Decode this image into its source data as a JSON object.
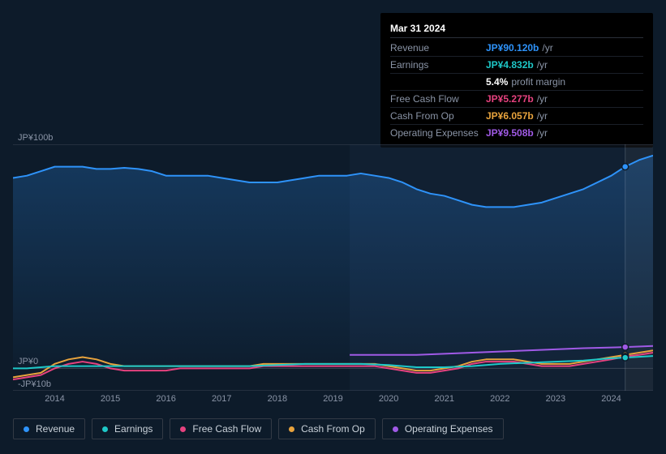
{
  "tooltip": {
    "title": "Mar 31 2024",
    "rows": [
      {
        "label": "Revenue",
        "value": "JP¥90.120b",
        "suffix": "/yr",
        "color": "#2e93fa"
      },
      {
        "label": "Earnings",
        "value": "JP¥4.832b",
        "suffix": "/yr",
        "color": "#1ec8c8"
      },
      {
        "label": "",
        "value": "5.4%",
        "suffix": "profit margin",
        "color": "#ffffff"
      },
      {
        "label": "Free Cash Flow",
        "value": "JP¥5.277b",
        "suffix": "/yr",
        "color": "#e6427f"
      },
      {
        "label": "Cash From Op",
        "value": "JP¥6.057b",
        "suffix": "/yr",
        "color": "#e8a33d"
      },
      {
        "label": "Operating Expenses",
        "value": "JP¥9.508b",
        "suffix": "/yr",
        "color": "#a05ae6"
      }
    ]
  },
  "chart": {
    "type": "area-line",
    "background": "#0d1b2a",
    "grid_color": "#3a4454",
    "text_color": "#8a94a6",
    "ylim": [
      -10,
      100
    ],
    "y_ticks": [
      {
        "v": 100,
        "label": "JP¥100b"
      },
      {
        "v": 0,
        "label": "JP¥0"
      },
      {
        "v": -10,
        "label": "-JP¥10b"
      }
    ],
    "xlim": [
      2013.25,
      2024.75
    ],
    "x_ticks": [
      2014,
      2015,
      2016,
      2017,
      2018,
      2019,
      2020,
      2021,
      2022,
      2023,
      2024
    ],
    "marker_x": 2024.25,
    "highlight_from_x": 2019.3,
    "series": [
      {
        "name": "Revenue",
        "color": "#2e93fa",
        "fill": true,
        "fill_opacity": 0.18,
        "data": [
          [
            2013.25,
            85
          ],
          [
            2013.5,
            86
          ],
          [
            2013.75,
            88
          ],
          [
            2014,
            90
          ],
          [
            2014.25,
            90
          ],
          [
            2014.5,
            90
          ],
          [
            2014.75,
            89
          ],
          [
            2015,
            89
          ],
          [
            2015.25,
            89.5
          ],
          [
            2015.5,
            89
          ],
          [
            2015.75,
            88
          ],
          [
            2016,
            86
          ],
          [
            2016.25,
            86
          ],
          [
            2016.5,
            86
          ],
          [
            2016.75,
            86
          ],
          [
            2017,
            85
          ],
          [
            2017.25,
            84
          ],
          [
            2017.5,
            83
          ],
          [
            2017.75,
            83
          ],
          [
            2018,
            83
          ],
          [
            2018.25,
            84
          ],
          [
            2018.5,
            85
          ],
          [
            2018.75,
            86
          ],
          [
            2019,
            86
          ],
          [
            2019.25,
            86
          ],
          [
            2019.5,
            87
          ],
          [
            2019.75,
            86
          ],
          [
            2020,
            85
          ],
          [
            2020.25,
            83
          ],
          [
            2020.5,
            80
          ],
          [
            2020.75,
            78
          ],
          [
            2021,
            77
          ],
          [
            2021.25,
            75
          ],
          [
            2021.5,
            73
          ],
          [
            2021.75,
            72
          ],
          [
            2022,
            72
          ],
          [
            2022.25,
            72
          ],
          [
            2022.5,
            73
          ],
          [
            2022.75,
            74
          ],
          [
            2023,
            76
          ],
          [
            2023.25,
            78
          ],
          [
            2023.5,
            80
          ],
          [
            2023.75,
            83
          ],
          [
            2024,
            86
          ],
          [
            2024.25,
            90
          ],
          [
            2024.5,
            93
          ],
          [
            2024.75,
            95
          ]
        ]
      },
      {
        "name": "Operating Expenses",
        "color": "#a05ae6",
        "fill": false,
        "data": [
          [
            2019.3,
            6
          ],
          [
            2019.5,
            6
          ],
          [
            2020,
            6
          ],
          [
            2020.5,
            6
          ],
          [
            2021,
            6.5
          ],
          [
            2021.5,
            7
          ],
          [
            2022,
            7.5
          ],
          [
            2022.5,
            8
          ],
          [
            2023,
            8.5
          ],
          [
            2023.5,
            9
          ],
          [
            2024,
            9.3
          ],
          [
            2024.25,
            9.5
          ],
          [
            2024.75,
            10
          ]
        ]
      },
      {
        "name": "Cash From Op",
        "color": "#e8a33d",
        "fill": false,
        "data": [
          [
            2013.25,
            -4
          ],
          [
            2013.5,
            -3
          ],
          [
            2013.75,
            -2
          ],
          [
            2014,
            2
          ],
          [
            2014.25,
            4
          ],
          [
            2014.5,
            5
          ],
          [
            2014.75,
            4
          ],
          [
            2015,
            2
          ],
          [
            2015.25,
            1
          ],
          [
            2015.5,
            1
          ],
          [
            2015.75,
            1
          ],
          [
            2016,
            1
          ],
          [
            2016.25,
            1
          ],
          [
            2016.5,
            1
          ],
          [
            2016.75,
            1
          ],
          [
            2017,
            1
          ],
          [
            2017.25,
            1
          ],
          [
            2017.5,
            1
          ],
          [
            2017.75,
            2
          ],
          [
            2018,
            2
          ],
          [
            2018.25,
            2
          ],
          [
            2018.5,
            2
          ],
          [
            2018.75,
            2
          ],
          [
            2019,
            2
          ],
          [
            2019.25,
            2
          ],
          [
            2019.5,
            2
          ],
          [
            2019.75,
            2
          ],
          [
            2020,
            1
          ],
          [
            2020.25,
            0
          ],
          [
            2020.5,
            -1
          ],
          [
            2020.75,
            -1
          ],
          [
            2021,
            0
          ],
          [
            2021.25,
            1
          ],
          [
            2021.5,
            3
          ],
          [
            2021.75,
            4
          ],
          [
            2022,
            4
          ],
          [
            2022.25,
            4
          ],
          [
            2022.5,
            3
          ],
          [
            2022.75,
            2
          ],
          [
            2023,
            2
          ],
          [
            2023.25,
            2
          ],
          [
            2023.5,
            3
          ],
          [
            2023.75,
            4
          ],
          [
            2024,
            5
          ],
          [
            2024.25,
            6
          ],
          [
            2024.5,
            7
          ],
          [
            2024.75,
            8
          ]
        ]
      },
      {
        "name": "Free Cash Flow",
        "color": "#e6427f",
        "fill": false,
        "data": [
          [
            2013.25,
            -5
          ],
          [
            2013.5,
            -4
          ],
          [
            2013.75,
            -3
          ],
          [
            2014,
            0
          ],
          [
            2014.25,
            2
          ],
          [
            2014.5,
            3
          ],
          [
            2014.75,
            2
          ],
          [
            2015,
            0
          ],
          [
            2015.25,
            -1
          ],
          [
            2015.5,
            -1
          ],
          [
            2015.75,
            -1
          ],
          [
            2016,
            -1
          ],
          [
            2016.25,
            0
          ],
          [
            2016.5,
            0
          ],
          [
            2016.75,
            0
          ],
          [
            2017,
            0
          ],
          [
            2017.25,
            0
          ],
          [
            2017.5,
            0
          ],
          [
            2017.75,
            1
          ],
          [
            2018,
            1
          ],
          [
            2018.25,
            1
          ],
          [
            2018.5,
            1
          ],
          [
            2018.75,
            1
          ],
          [
            2019,
            1
          ],
          [
            2019.25,
            1
          ],
          [
            2019.5,
            1
          ],
          [
            2019.75,
            1
          ],
          [
            2020,
            0
          ],
          [
            2020.25,
            -1
          ],
          [
            2020.5,
            -2
          ],
          [
            2020.75,
            -2
          ],
          [
            2021,
            -1
          ],
          [
            2021.25,
            0
          ],
          [
            2021.5,
            2
          ],
          [
            2021.75,
            3
          ],
          [
            2022,
            3
          ],
          [
            2022.25,
            3
          ],
          [
            2022.5,
            2
          ],
          [
            2022.75,
            1
          ],
          [
            2023,
            1
          ],
          [
            2023.25,
            1
          ],
          [
            2023.5,
            2
          ],
          [
            2023.75,
            3
          ],
          [
            2024,
            4
          ],
          [
            2024.25,
            5.3
          ],
          [
            2024.5,
            6
          ],
          [
            2024.75,
            7
          ]
        ]
      },
      {
        "name": "Earnings",
        "color": "#1ec8c8",
        "fill": false,
        "data": [
          [
            2013.25,
            0
          ],
          [
            2013.5,
            0
          ],
          [
            2014,
            1
          ],
          [
            2014.5,
            1
          ],
          [
            2015,
            1
          ],
          [
            2015.5,
            1
          ],
          [
            2016,
            1
          ],
          [
            2016.5,
            1
          ],
          [
            2017,
            1
          ],
          [
            2017.5,
            1
          ],
          [
            2018,
            1.5
          ],
          [
            2018.5,
            2
          ],
          [
            2019,
            2
          ],
          [
            2019.5,
            2
          ],
          [
            2020,
            1.5
          ],
          [
            2020.5,
            0.5
          ],
          [
            2021,
            0.5
          ],
          [
            2021.5,
            1
          ],
          [
            2022,
            2
          ],
          [
            2022.5,
            2.5
          ],
          [
            2023,
            3
          ],
          [
            2023.5,
            3.5
          ],
          [
            2024,
            4.5
          ],
          [
            2024.25,
            4.8
          ],
          [
            2024.75,
            5.5
          ]
        ]
      }
    ],
    "legend": [
      {
        "label": "Revenue",
        "color": "#2e93fa"
      },
      {
        "label": "Earnings",
        "color": "#1ec8c8"
      },
      {
        "label": "Free Cash Flow",
        "color": "#e6427f"
      },
      {
        "label": "Cash From Op",
        "color": "#e8a33d"
      },
      {
        "label": "Operating Expenses",
        "color": "#a05ae6"
      }
    ]
  }
}
